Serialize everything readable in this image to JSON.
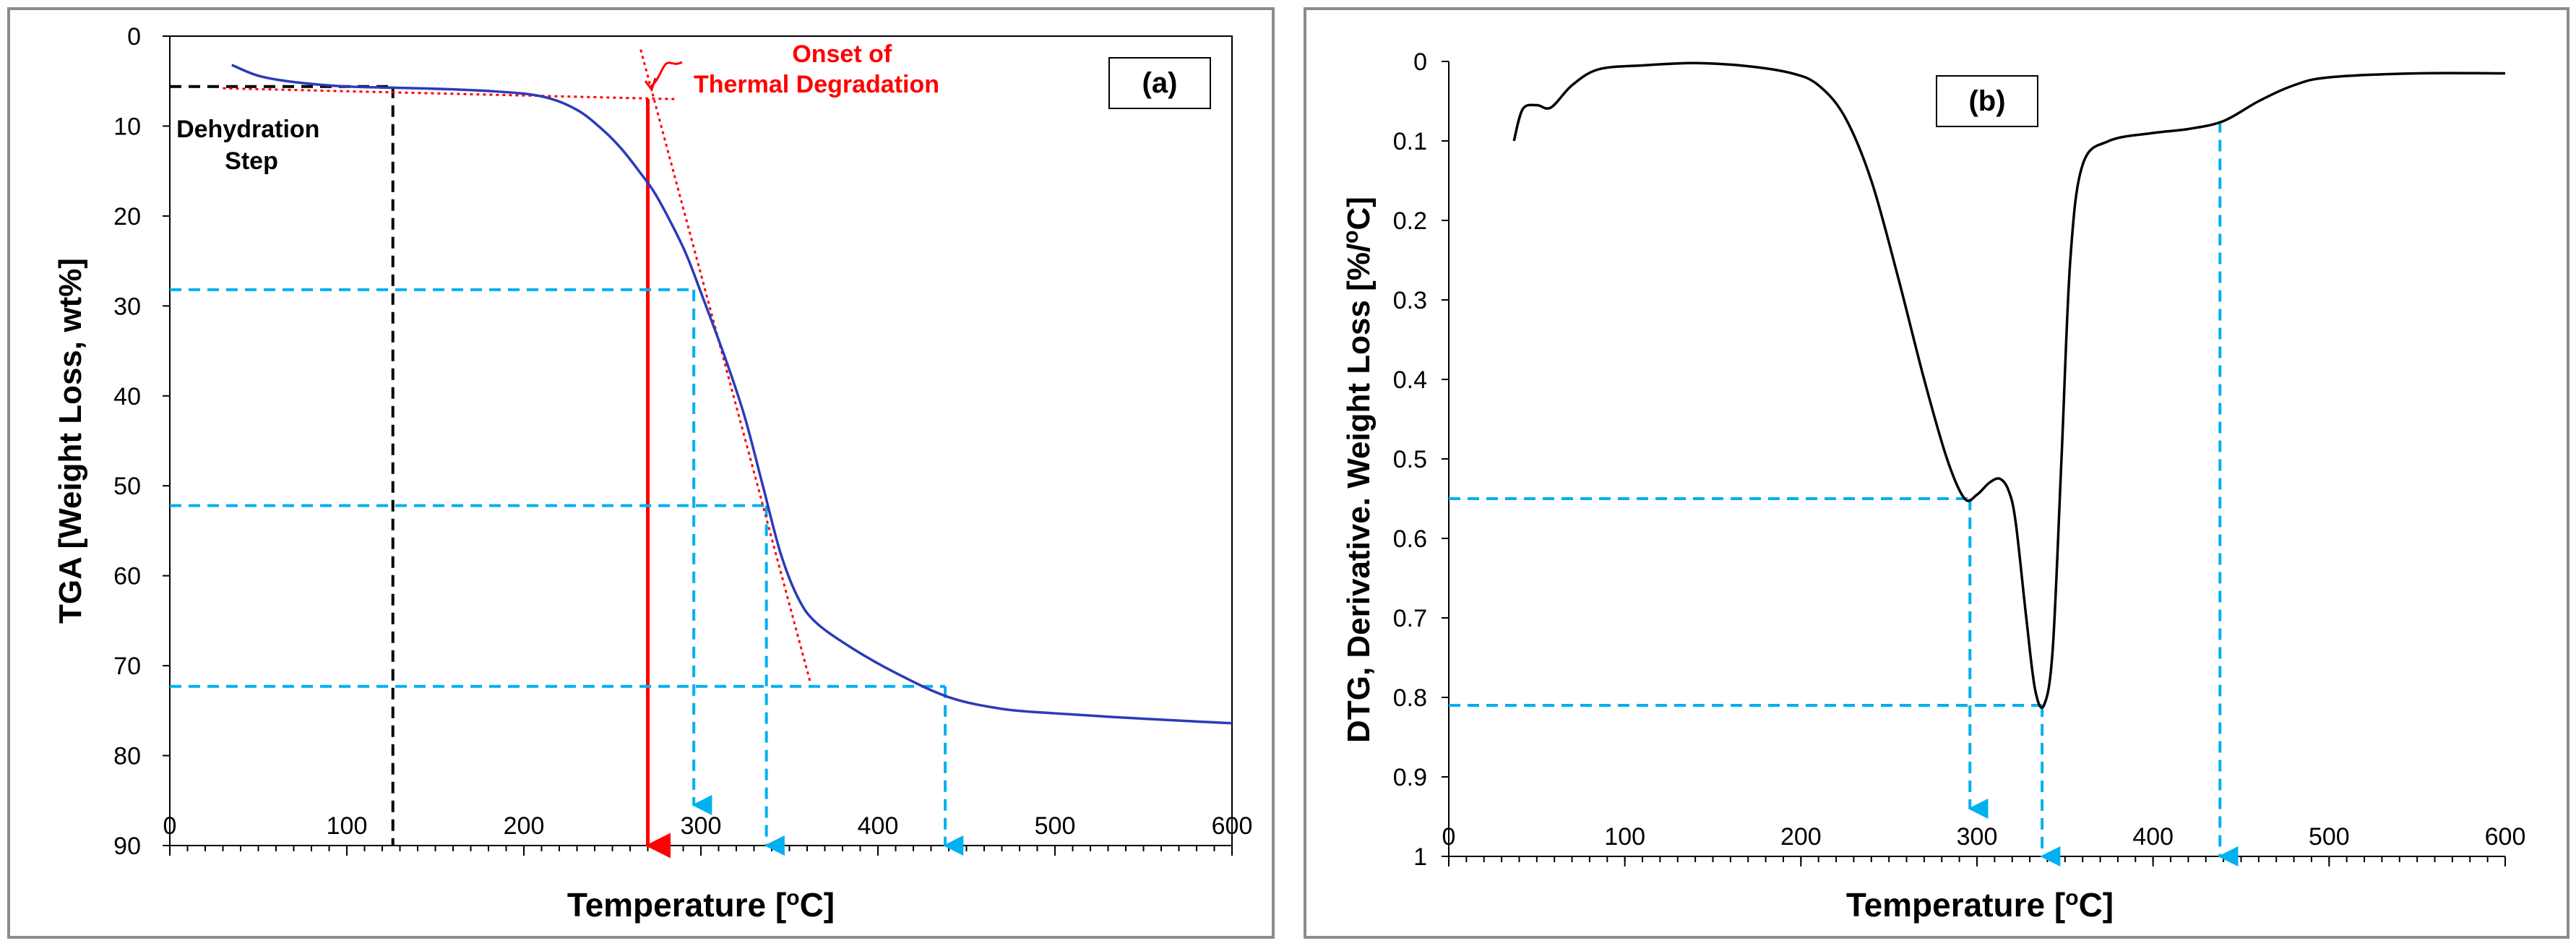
{
  "chart_data": [
    {
      "type": "line",
      "panel_label": "(a)",
      "ylabel": "TGA [Weight Loss, wt%]",
      "xlabel_main": "Temperature [",
      "xlabel_sup": "o",
      "xlabel_end": "C]",
      "xlim": [
        0,
        600
      ],
      "ylim": [
        0,
        90
      ],
      "y_inverted": true,
      "x_ticks": [
        {
          "value": 0,
          "label": "0"
        },
        {
          "value": 100,
          "label": "100"
        },
        {
          "value": 200,
          "label": "200"
        },
        {
          "value": 300,
          "label": "300"
        },
        {
          "value": 400,
          "label": "400"
        },
        {
          "value": 500,
          "label": "500"
        },
        {
          "value": 600,
          "label": "600"
        }
      ],
      "y_ticks": [
        {
          "value": 0,
          "label": "0"
        },
        {
          "value": 10,
          "label": "10"
        },
        {
          "value": 20,
          "label": "20"
        },
        {
          "value": 30,
          "label": "30"
        },
        {
          "value": 40,
          "label": "40"
        },
        {
          "value": 50,
          "label": "50"
        },
        {
          "value": 60,
          "label": "60"
        },
        {
          "value": 70,
          "label": "70"
        },
        {
          "value": 80,
          "label": "80"
        },
        {
          "value": 90,
          "label": "90"
        }
      ],
      "series": [
        {
          "name": "TGA curve",
          "color": "#2b3bb8",
          "x": [
            35,
            50,
            70,
            100,
            140,
            180,
            210,
            230,
            245,
            255,
            265,
            275,
            290,
            300,
            315,
            325,
            335,
            345,
            355,
            365,
            385,
            410,
            440,
            470,
            500,
            550,
            600
          ],
          "y": [
            3.2,
            4.4,
            5.1,
            5.6,
            5.8,
            6.1,
            6.7,
            8.2,
            10.5,
            12.5,
            15.0,
            17.8,
            23.5,
            28.5,
            36.5,
            42.5,
            50.0,
            57.5,
            62.5,
            65.2,
            68.0,
            70.8,
            73.5,
            74.8,
            75.3,
            75.9,
            76.4
          ]
        }
      ],
      "tangent_lines": [
        {
          "color": "#ff0000",
          "x": [
            30,
            285
          ],
          "y": [
            5.8,
            7.0
          ]
        },
        {
          "color": "#ff0000",
          "x": [
            266,
            362
          ],
          "y": [
            1.5,
            72.0
          ]
        }
      ],
      "reference_lines": [
        {
          "name": "dehydration-vertical",
          "color": "#000000",
          "x": [
            126,
            126
          ],
          "y": [
            5.6,
            90
          ]
        },
        {
          "name": "dehydration-horizontal",
          "color": "#000000",
          "x": [
            0,
            126
          ],
          "y": [
            5.6,
            5.6
          ]
        },
        {
          "name": "onset-vertical",
          "color": "#ff0000",
          "x": [
            270,
            270
          ],
          "y": [
            7.0,
            90
          ]
        },
        {
          "name": "level-28",
          "color": "#00b0f0",
          "x": [
            0,
            296
          ],
          "y": [
            28.2,
            28.2
          ]
        },
        {
          "name": "drop-296",
          "color": "#00b0f0",
          "x": [
            296,
            296
          ],
          "y": [
            28.2,
            85.5
          ]
        },
        {
          "name": "level-52",
          "color": "#00b0f0",
          "x": [
            0,
            337
          ],
          "y": [
            52.2,
            52.2
          ]
        },
        {
          "name": "drop-337",
          "color": "#00b0f0",
          "x": [
            337,
            337
          ],
          "y": [
            52.2,
            90
          ]
        },
        {
          "name": "level-72",
          "color": "#00b0f0",
          "x": [
            0,
            438
          ],
          "y": [
            72.3,
            72.3
          ]
        },
        {
          "name": "drop-438",
          "color": "#00b0f0",
          "x": [
            438,
            438
          ],
          "y": [
            72.3,
            90
          ]
        }
      ],
      "annotations": [
        {
          "lines": [
            "Dehydration",
            "Step"
          ],
          "color": "#000000",
          "x": 48,
          "y": 11.5
        },
        {
          "lines": [
            "Onset of",
            "Thermal Degradation"
          ],
          "color": "#ff0000",
          "x": 390,
          "y": 2.4
        }
      ]
    },
    {
      "type": "line",
      "panel_label": "(b)",
      "ylabel": "DTG, Derivative. Weight Loss [%/",
      "ylabel_sup": "o",
      "ylabel_end": "C]",
      "xlabel_main": "Temperature [",
      "xlabel_sup": "o",
      "xlabel_end": "C]",
      "xlim": [
        0,
        600
      ],
      "ylim": [
        0,
        1
      ],
      "y_inverted": true,
      "x_ticks": [
        {
          "value": 0,
          "label": "0"
        },
        {
          "value": 100,
          "label": "100"
        },
        {
          "value": 200,
          "label": "200"
        },
        {
          "value": 300,
          "label": "300"
        },
        {
          "value": 400,
          "label": "400"
        },
        {
          "value": 500,
          "label": "500"
        },
        {
          "value": 600,
          "label": "600"
        }
      ],
      "y_ticks": [
        {
          "value": 0,
          "label": "0"
        },
        {
          "value": 0.1,
          "label": "0.1"
        },
        {
          "value": 0.2,
          "label": "0.2"
        },
        {
          "value": 0.3,
          "label": "0.3"
        },
        {
          "value": 0.4,
          "label": "0.4"
        },
        {
          "value": 0.5,
          "label": "0.5"
        },
        {
          "value": 0.6,
          "label": "0.6"
        },
        {
          "value": 0.7,
          "label": "0.7"
        },
        {
          "value": 0.8,
          "label": "0.8"
        },
        {
          "value": 0.9,
          "label": "0.9"
        },
        {
          "value": 1,
          "label": "1"
        }
      ],
      "series": [
        {
          "name": "DTG curve",
          "color": "#000000",
          "x": [
            37,
            42,
            50,
            58,
            70,
            85,
            110,
            140,
            170,
            195,
            210,
            225,
            240,
            255,
            270,
            283,
            293,
            300,
            307,
            313,
            318,
            322,
            328,
            333,
            338,
            343,
            348,
            353,
            360,
            375,
            400,
            420,
            440,
            460,
            480,
            500,
            550,
            600
          ],
          "y": [
            0.1,
            0.06,
            0.055,
            0.058,
            0.03,
            0.01,
            0.005,
            0.002,
            0.006,
            0.015,
            0.03,
            0.07,
            0.15,
            0.27,
            0.4,
            0.5,
            0.55,
            0.545,
            0.53,
            0.525,
            0.54,
            0.58,
            0.7,
            0.79,
            0.81,
            0.74,
            0.5,
            0.25,
            0.13,
            0.1,
            0.09,
            0.085,
            0.075,
            0.05,
            0.03,
            0.02,
            0.015,
            0.015
          ]
        }
      ],
      "reference_lines": [
        {
          "name": "level-055",
          "color": "#00b0f0",
          "x": [
            0,
            296
          ],
          "y": [
            0.55,
            0.55
          ]
        },
        {
          "name": "drop-296",
          "color": "#00b0f0",
          "x": [
            296,
            296
          ],
          "y": [
            0.55,
            0.94
          ]
        },
        {
          "name": "level-081",
          "color": "#00b0f0",
          "x": [
            0,
            337
          ],
          "y": [
            0.81,
            0.81
          ]
        },
        {
          "name": "drop-337",
          "color": "#00b0f0",
          "x": [
            337,
            337
          ],
          "y": [
            0.81,
            1.0
          ]
        },
        {
          "name": "drop-438",
          "color": "#00b0f0",
          "x": [
            438,
            438
          ],
          "y": [
            0.075,
            1.0
          ]
        }
      ]
    }
  ]
}
